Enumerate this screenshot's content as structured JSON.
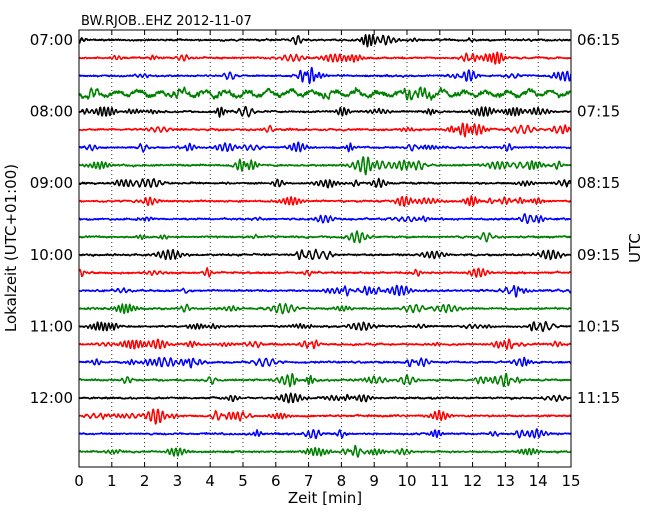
{
  "chart_data": {
    "type": "line",
    "title": "BW.RJOB..EHZ 2012-11-07",
    "xlabel": "Zeit  [min]",
    "ylabel_left": "Lokalzeit (UTC+01:00)",
    "ylabel_right": "UTC",
    "xlim": [
      0,
      15
    ],
    "x_ticks": [
      0,
      1,
      2,
      3,
      4,
      5,
      6,
      7,
      8,
      9,
      10,
      11,
      12,
      13,
      14,
      15
    ],
    "x_tick_labels": [
      "0",
      "1",
      "2",
      "3",
      "4",
      "5",
      "6",
      "7",
      "8",
      "9",
      "10",
      "11",
      "12",
      "13",
      "14",
      "15"
    ],
    "grid_x": true,
    "trace_count": 24,
    "trace_colors": [
      "#000000",
      "#ff0000",
      "#0000ff",
      "#008000"
    ],
    "left_ticks": [
      {
        "trace": 0,
        "label": "07:00"
      },
      {
        "trace": 4,
        "label": "08:00"
      },
      {
        "trace": 8,
        "label": "09:00"
      },
      {
        "trace": 12,
        "label": "10:00"
      },
      {
        "trace": 16,
        "label": "11:00"
      },
      {
        "trace": 20,
        "label": "12:00"
      }
    ],
    "right_ticks": [
      {
        "trace": 0,
        "label": "06:15"
      },
      {
        "trace": 4,
        "label": "07:15"
      },
      {
        "trace": 8,
        "label": "08:15"
      },
      {
        "trace": 12,
        "label": "09:15"
      },
      {
        "trace": 16,
        "label": "10:15"
      },
      {
        "trace": 20,
        "label": "11:15"
      }
    ],
    "noisy_traces": [
      3
    ]
  }
}
